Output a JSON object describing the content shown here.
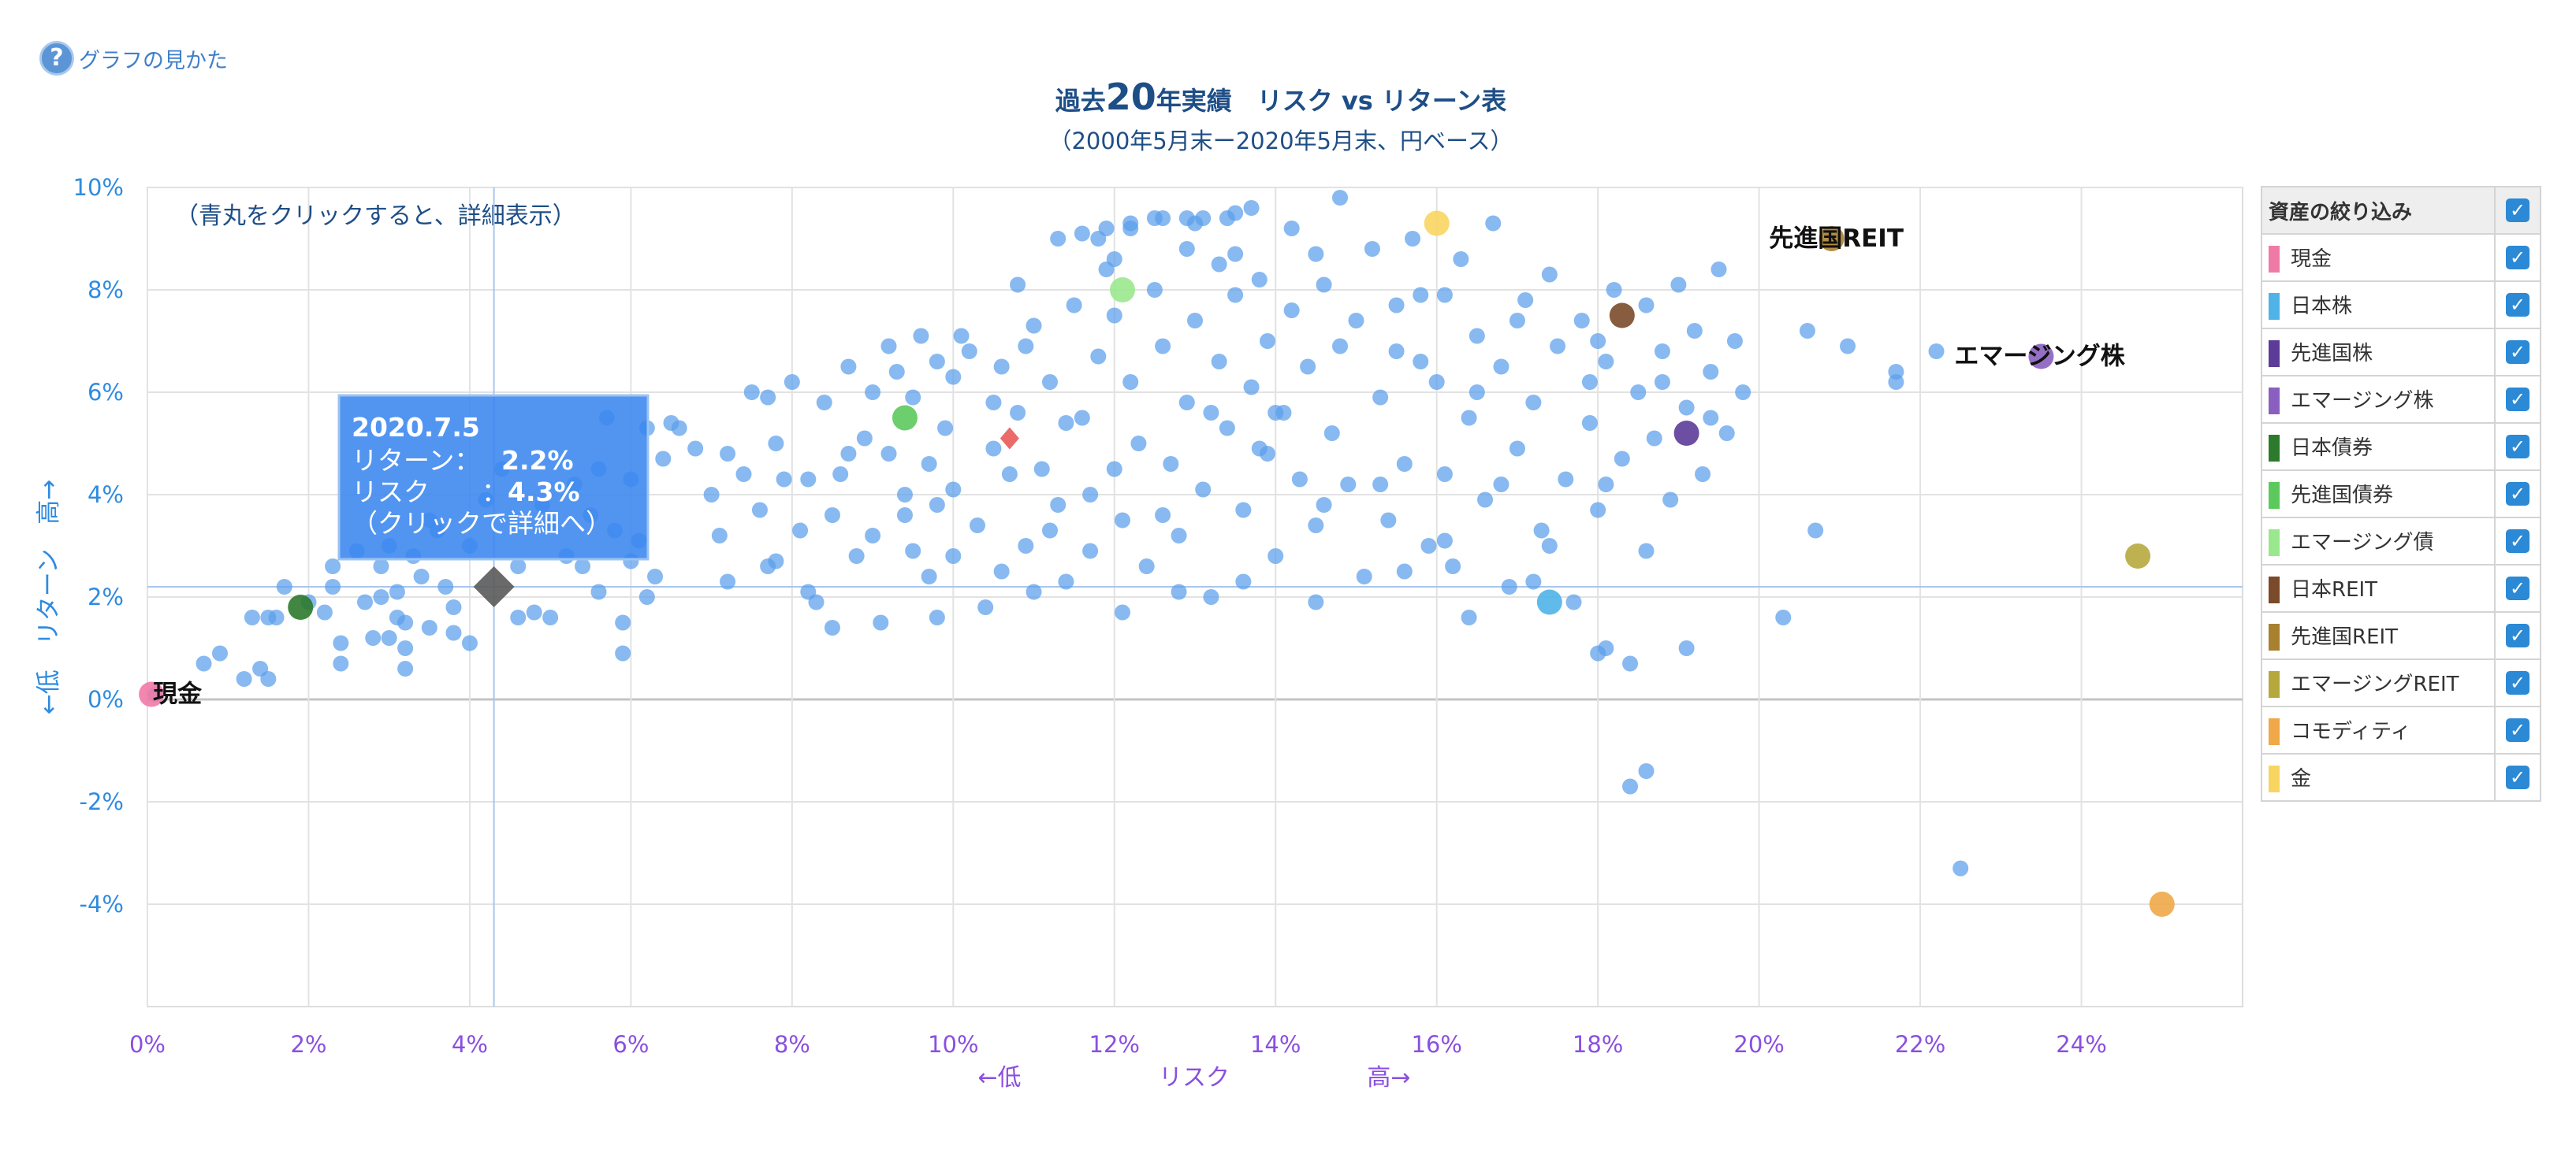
{
  "help": {
    "label": "グラフの見かた"
  },
  "title": {
    "pre": "過去",
    "num": "20",
    "post": "年実績　リスク vs リターン表"
  },
  "subtitle": "（2000年5月末ー2020年5月末、円ベース）",
  "chart_data": {
    "type": "scatter",
    "note": "（青丸をクリックすると、詳細表示）",
    "xlabel": [
      "←低",
      "リスク",
      "高→"
    ],
    "ylabel": "←低　リターン　高→",
    "xlim": [
      0,
      26
    ],
    "ylim": [
      -6,
      10
    ],
    "x_ticks": [
      0,
      2,
      4,
      6,
      8,
      10,
      12,
      14,
      16,
      18,
      20,
      22,
      24
    ],
    "x_tick_labels": [
      "0%",
      "2%",
      "4%",
      "6%",
      "8%",
      "10%",
      "12%",
      "14%",
      "16%",
      "18%",
      "20%",
      "22%",
      "24%"
    ],
    "y_ticks": [
      -4,
      -2,
      0,
      2,
      4,
      6,
      8,
      10
    ],
    "y_tick_labels": [
      "-4%",
      "-2%",
      "0%",
      "2%",
      "4%",
      "6%",
      "8%",
      "10%"
    ],
    "grid": true,
    "portfolio_points": [
      [
        0.1,
        0.1
      ],
      [
        0.7,
        0.7
      ],
      [
        0.9,
        0.9
      ],
      [
        1.2,
        0.4
      ],
      [
        1.3,
        1.6
      ],
      [
        1.4,
        0.6
      ],
      [
        1.5,
        1.6
      ],
      [
        1.5,
        0.4
      ],
      [
        1.6,
        1.6
      ],
      [
        1.7,
        2.2
      ],
      [
        2.0,
        1.9
      ],
      [
        2.2,
        1.7
      ],
      [
        2.3,
        2.6
      ],
      [
        2.3,
        2.2
      ],
      [
        2.4,
        1.1
      ],
      [
        2.4,
        0.7
      ],
      [
        2.7,
        1.9
      ],
      [
        2.8,
        1.2
      ],
      [
        2.9,
        2.6
      ],
      [
        2.9,
        2.0
      ],
      [
        3.0,
        3.0
      ],
      [
        3.0,
        1.2
      ],
      [
        3.1,
        2.1
      ],
      [
        3.1,
        1.6
      ],
      [
        3.2,
        1.5
      ],
      [
        3.2,
        1.0
      ],
      [
        3.2,
        0.6
      ],
      [
        3.3,
        2.8
      ],
      [
        3.4,
        2.4
      ],
      [
        3.5,
        1.4
      ],
      [
        3.6,
        3.3
      ],
      [
        3.7,
        2.2
      ],
      [
        3.8,
        1.3
      ],
      [
        4.0,
        3.0
      ],
      [
        4.0,
        1.1
      ],
      [
        4.2,
        3.9
      ],
      [
        4.6,
        2.6
      ],
      [
        4.6,
        1.6
      ],
      [
        4.8,
        1.7
      ],
      [
        5.0,
        3.4
      ],
      [
        5.0,
        1.6
      ],
      [
        5.2,
        2.8
      ],
      [
        5.5,
        3.6
      ],
      [
        5.6,
        4.5
      ],
      [
        5.6,
        2.1
      ],
      [
        5.7,
        5.5
      ],
      [
        5.8,
        3.3
      ],
      [
        5.9,
        1.5
      ],
      [
        5.9,
        0.9
      ],
      [
        6.0,
        4.3
      ],
      [
        6.0,
        2.7
      ],
      [
        6.1,
        3.1
      ],
      [
        6.2,
        5.3
      ],
      [
        6.3,
        2.4
      ],
      [
        6.4,
        4.7
      ],
      [
        6.5,
        5.4
      ],
      [
        6.8,
        4.9
      ],
      [
        7.0,
        4.0
      ],
      [
        7.2,
        4.8
      ],
      [
        7.2,
        2.3
      ],
      [
        7.4,
        4.4
      ],
      [
        7.5,
        6.0
      ],
      [
        7.6,
        3.7
      ],
      [
        7.7,
        5.9
      ],
      [
        7.7,
        2.6
      ],
      [
        7.8,
        5.0
      ],
      [
        7.9,
        4.3
      ],
      [
        8.0,
        6.2
      ],
      [
        8.1,
        3.3
      ],
      [
        8.2,
        4.3
      ],
      [
        8.3,
        1.9
      ],
      [
        8.4,
        5.8
      ],
      [
        8.5,
        3.6
      ],
      [
        8.6,
        4.4
      ],
      [
        8.7,
        6.5
      ],
      [
        8.8,
        2.8
      ],
      [
        8.9,
        5.1
      ],
      [
        9.0,
        6.0
      ],
      [
        9.0,
        3.2
      ],
      [
        9.1,
        1.5
      ],
      [
        9.2,
        6.9
      ],
      [
        9.2,
        4.8
      ],
      [
        9.3,
        6.4
      ],
      [
        9.4,
        3.6
      ],
      [
        9.5,
        5.9
      ],
      [
        9.5,
        2.9
      ],
      [
        9.6,
        7.1
      ],
      [
        9.7,
        4.6
      ],
      [
        9.7,
        2.4
      ],
      [
        9.8,
        6.6
      ],
      [
        9.8,
        3.8
      ],
      [
        9.9,
        5.3
      ],
      [
        10.0,
        6.3
      ],
      [
        10.0,
        4.1
      ],
      [
        10.1,
        7.1
      ],
      [
        10.2,
        6.8
      ],
      [
        10.3,
        3.4
      ],
      [
        10.4,
        1.8
      ],
      [
        10.5,
        5.8
      ],
      [
        10.5,
        4.9
      ],
      [
        10.6,
        6.5
      ],
      [
        10.7,
        4.4
      ],
      [
        10.8,
        8.1
      ],
      [
        10.8,
        5.6
      ],
      [
        10.9,
        3.0
      ],
      [
        11.0,
        7.3
      ],
      [
        11.1,
        4.5
      ],
      [
        11.2,
        6.2
      ],
      [
        11.3,
        3.8
      ],
      [
        11.4,
        2.3
      ],
      [
        11.5,
        7.7
      ],
      [
        11.6,
        5.5
      ],
      [
        11.7,
        4.0
      ],
      [
        11.8,
        9.0
      ],
      [
        11.8,
        6.7
      ],
      [
        11.9,
        8.4
      ],
      [
        12.0,
        7.5
      ],
      [
        12.1,
        3.5
      ],
      [
        12.1,
        1.7
      ],
      [
        12.2,
        9.2
      ],
      [
        12.2,
        6.2
      ],
      [
        12.3,
        5.0
      ],
      [
        12.4,
        2.6
      ],
      [
        12.5,
        9.4
      ],
      [
        12.5,
        8.0
      ],
      [
        12.6,
        6.9
      ],
      [
        12.7,
        4.6
      ],
      [
        12.8,
        3.2
      ],
      [
        12.9,
        8.8
      ],
      [
        12.9,
        5.8
      ],
      [
        13.0,
        9.3
      ],
      [
        13.0,
        7.4
      ],
      [
        13.1,
        4.1
      ],
      [
        13.2,
        2.0
      ],
      [
        13.3,
        8.5
      ],
      [
        13.3,
        6.6
      ],
      [
        13.4,
        9.4
      ],
      [
        13.4,
        5.3
      ],
      [
        13.5,
        7.9
      ],
      [
        13.6,
        3.7
      ],
      [
        13.7,
        9.6
      ],
      [
        13.7,
        6.1
      ],
      [
        13.8,
        8.2
      ],
      [
        13.8,
        4.9
      ],
      [
        13.9,
        7.0
      ],
      [
        14.0,
        2.8
      ],
      [
        14.1,
        5.6
      ],
      [
        14.2,
        9.2
      ],
      [
        14.2,
        7.6
      ],
      [
        14.3,
        4.3
      ],
      [
        14.4,
        6.5
      ],
      [
        14.5,
        3.4
      ],
      [
        14.5,
        1.9
      ],
      [
        14.6,
        8.1
      ],
      [
        14.7,
        5.2
      ],
      [
        14.8,
        9.8
      ],
      [
        14.8,
        6.9
      ],
      [
        14.9,
        4.2
      ],
      [
        15.0,
        7.4
      ],
      [
        15.1,
        2.4
      ],
      [
        15.2,
        8.8
      ],
      [
        15.3,
        5.9
      ],
      [
        15.4,
        3.5
      ],
      [
        15.5,
        6.8
      ],
      [
        15.6,
        4.6
      ],
      [
        15.7,
        9.0
      ],
      [
        15.8,
        7.9
      ],
      [
        15.9,
        3.0
      ],
      [
        16.0,
        6.2
      ],
      [
        16.1,
        4.4
      ],
      [
        16.2,
        2.6
      ],
      [
        16.3,
        8.6
      ],
      [
        16.4,
        5.5
      ],
      [
        16.5,
        7.1
      ],
      [
        16.6,
        3.9
      ],
      [
        16.7,
        9.3
      ],
      [
        16.8,
        6.5
      ],
      [
        16.9,
        2.2
      ],
      [
        17.0,
        4.9
      ],
      [
        17.1,
        7.8
      ],
      [
        17.2,
        5.8
      ],
      [
        17.3,
        3.3
      ],
      [
        17.4,
        8.3
      ],
      [
        17.5,
        6.9
      ],
      [
        17.6,
        4.3
      ],
      [
        17.7,
        1.9
      ],
      [
        17.8,
        7.4
      ],
      [
        17.9,
        5.4
      ],
      [
        18.0,
        3.7
      ],
      [
        18.1,
        6.6
      ],
      [
        18.2,
        8.0
      ],
      [
        18.3,
        4.7
      ],
      [
        18.4,
        0.7
      ],
      [
        18.5,
        6.0
      ],
      [
        18.6,
        7.7
      ],
      [
        18.6,
        2.9
      ],
      [
        18.7,
        5.1
      ],
      [
        18.8,
        6.8
      ],
      [
        18.9,
        3.9
      ],
      [
        19.0,
        8.1
      ],
      [
        19.1,
        5.7
      ],
      [
        19.2,
        7.2
      ],
      [
        19.3,
        4.4
      ],
      [
        19.4,
        6.4
      ],
      [
        19.5,
        8.4
      ],
      [
        19.6,
        5.2
      ],
      [
        19.7,
        7.0
      ],
      [
        19.8,
        6.0
      ],
      [
        18.4,
        -1.7
      ],
      [
        18.6,
        -1.4
      ],
      [
        18.0,
        0.9
      ],
      [
        18.1,
        1.0
      ],
      [
        19.1,
        1.0
      ],
      [
        20.3,
        1.6
      ],
      [
        20.7,
        3.3
      ],
      [
        20.6,
        7.2
      ],
      [
        21.1,
        6.9
      ],
      [
        21.7,
        6.4
      ],
      [
        21.7,
        6.2
      ],
      [
        22.2,
        6.8
      ],
      [
        22.5,
        -3.3
      ],
      [
        6.2,
        2.0
      ],
      [
        5.4,
        2.6
      ],
      [
        3.8,
        1.8
      ],
      [
        4.4,
        4.5
      ],
      [
        6.6,
        5.3
      ],
      [
        7.1,
        3.2
      ],
      [
        8.2,
        2.1
      ],
      [
        8.7,
        4.8
      ],
      [
        9.4,
        4.0
      ],
      [
        10.0,
        2.8
      ],
      [
        10.6,
        2.5
      ],
      [
        11.2,
        3.3
      ],
      [
        11.7,
        2.9
      ],
      [
        12.6,
        3.6
      ],
      [
        13.2,
        5.6
      ],
      [
        13.9,
        4.8
      ],
      [
        14.6,
        3.8
      ],
      [
        15.3,
        4.2
      ],
      [
        16.1,
        3.1
      ],
      [
        16.8,
        4.2
      ],
      [
        17.4,
        3.0
      ],
      [
        18.1,
        4.2
      ],
      [
        12.0,
        4.5
      ],
      [
        11.4,
        5.4
      ],
      [
        10.9,
        6.9
      ],
      [
        14.0,
        5.6
      ],
      [
        15.8,
        6.6
      ],
      [
        16.5,
        6.0
      ],
      [
        17.9,
        6.2
      ],
      [
        7.8,
        2.7
      ],
      [
        8.5,
        1.4
      ],
      [
        9.8,
        1.6
      ],
      [
        11.0,
        2.1
      ],
      [
        12.8,
        2.1
      ],
      [
        13.6,
        2.3
      ],
      [
        15.6,
        2.5
      ],
      [
        16.4,
        1.6
      ],
      [
        17.2,
        2.3
      ],
      [
        5.3,
        4.2
      ],
      [
        4.9,
        3.8
      ],
      [
        3.5,
        3.5
      ],
      [
        2.6,
        2.9
      ],
      [
        12.0,
        8.6
      ],
      [
        13.5,
        8.7
      ],
      [
        14.5,
        8.7
      ],
      [
        15.5,
        7.7
      ],
      [
        16.1,
        7.9
      ],
      [
        17.0,
        7.4
      ],
      [
        18.0,
        7.0
      ],
      [
        18.8,
        6.2
      ],
      [
        19.4,
        5.5
      ],
      [
        11.3,
        9.0
      ],
      [
        11.6,
        9.1
      ],
      [
        11.9,
        9.2
      ],
      [
        12.2,
        9.3
      ],
      [
        12.6,
        9.4
      ],
      [
        12.9,
        9.4
      ],
      [
        13.1,
        9.4
      ],
      [
        13.5,
        9.5
      ]
    ],
    "assets": [
      {
        "name": "現金",
        "x": 0.05,
        "y": 0.1,
        "color": "#f07aa6",
        "label": "現金"
      },
      {
        "name": "日本株",
        "x": 17.4,
        "y": 1.9,
        "color": "#4fb3e8"
      },
      {
        "name": "先進国株",
        "x": 19.1,
        "y": 5.2,
        "color": "#5c3c98"
      },
      {
        "name": "エマージング株",
        "x": 23.5,
        "y": 6.7,
        "color": "#8a5fc0",
        "label": "エマージング株"
      },
      {
        "name": "日本債券",
        "x": 1.9,
        "y": 1.8,
        "color": "#2c7a2c"
      },
      {
        "name": "先進国債券",
        "x": 9.4,
        "y": 5.5,
        "color": "#5cc95c"
      },
      {
        "name": "エマージング債",
        "x": 12.1,
        "y": 8.0,
        "color": "#9ae88e"
      },
      {
        "name": "日本REIT",
        "x": 18.3,
        "y": 7.5,
        "color": "#7a4a2a"
      },
      {
        "name": "先進国REIT",
        "x": 20.9,
        "y": 9.0,
        "color": "#a8802e",
        "label": "先進国REIT"
      },
      {
        "name": "エマージングREIT",
        "x": 24.7,
        "y": 2.8,
        "color": "#b7a83e"
      },
      {
        "name": "コモディティ",
        "x": 25.0,
        "y": -4.0,
        "color": "#f0a848"
      },
      {
        "name": "金",
        "x": 16.0,
        "y": 9.3,
        "color": "#f8d560"
      }
    ],
    "red_marker": {
      "x": 10.7,
      "y": 5.1,
      "color": "#e85050"
    },
    "selected": {
      "x": 4.3,
      "y": 2.2
    },
    "tooltip": {
      "date": "2020.7.5",
      "return_label": "リターン：",
      "return_value": "2.2%",
      "risk_label": "リスク　　：",
      "risk_value": "4.3%",
      "hint": "（クリックで詳細へ）"
    }
  },
  "filter": {
    "header": "資産の絞り込み",
    "items": [
      {
        "label": "現金",
        "color": "#f07aa6"
      },
      {
        "label": "日本株",
        "color": "#4fb3e8"
      },
      {
        "label": "先進国株",
        "color": "#5c3c98"
      },
      {
        "label": "エマージング株",
        "color": "#8a5fc0"
      },
      {
        "label": "日本債券",
        "color": "#2c7a2c"
      },
      {
        "label": "先進国債券",
        "color": "#5cc95c"
      },
      {
        "label": "エマージング債",
        "color": "#9ae88e"
      },
      {
        "label": "日本REIT",
        "color": "#7a4a2a"
      },
      {
        "label": "先進国REIT",
        "color": "#a8802e"
      },
      {
        "label": "エマージングREIT",
        "color": "#b7a83e"
      },
      {
        "label": "コモディティ",
        "color": "#f0a848"
      },
      {
        "label": "金",
        "color": "#f8d560"
      }
    ],
    "checkmark": "✓"
  }
}
